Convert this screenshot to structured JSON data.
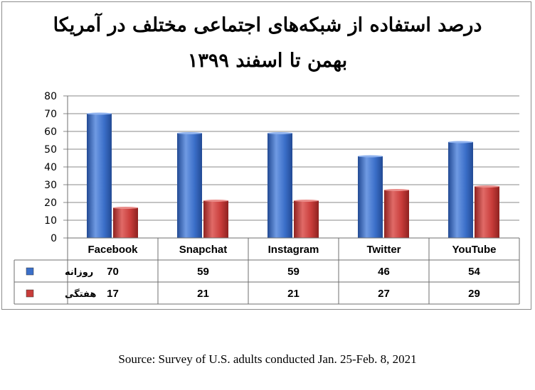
{
  "chart_data": {
    "type": "bar",
    "title": "درصد استفاده از شبکه‌های اجتماعی مختلف در آمریکا",
    "subtitle": "بهمن تا اسفند ۱۳۹۹",
    "categories": [
      "Facebook",
      "Snapchat",
      "Instagram",
      "Twitter",
      "YouTube"
    ],
    "series": [
      {
        "name": "روزانه",
        "values": [
          70,
          59,
          59,
          46,
          54
        ],
        "color": "#3b6fc9"
      },
      {
        "name": "هفتگی",
        "values": [
          17,
          21,
          21,
          27,
          29
        ],
        "color": "#c83c3a"
      }
    ],
    "ylim": [
      0,
      80
    ],
    "yticks": [
      0,
      10,
      20,
      30,
      40,
      50,
      60,
      70,
      80
    ],
    "grid": true,
    "legend": "data-table"
  },
  "source": "Source: Survey of U.S. adults conducted Jan. 25-Feb. 8, 2021"
}
